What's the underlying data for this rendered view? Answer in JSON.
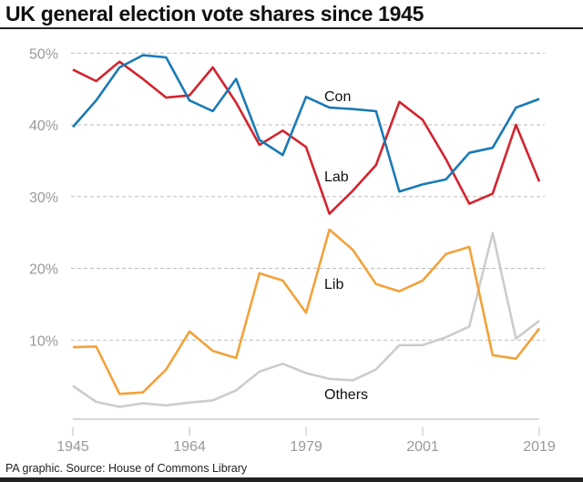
{
  "title": "UK general election vote shares since 1945",
  "source": "PA graphic. Source: House of Commons Library",
  "chart_data": {
    "type": "line",
    "title": "UK general election vote shares since 1945",
    "x": [
      "1945",
      "1950",
      "1951",
      "1955",
      "1959",
      "1964",
      "1966",
      "1970",
      "Feb 1974",
      "Oct 1974",
      "1979",
      "1983",
      "1987",
      "1992",
      "1997",
      "2001",
      "2005",
      "2010",
      "2015",
      "2017",
      "2019"
    ],
    "x_tick_labels": [
      "1945",
      "1964",
      "1979",
      "2001",
      "2019"
    ],
    "y_tick_labels": [
      "10%",
      "20%",
      "30%",
      "40%",
      "50%"
    ],
    "ylim": [
      0,
      50
    ],
    "grid": "horizontal dashed",
    "series": [
      {
        "name": "Con",
        "color": "#1a7ab5",
        "values": [
          39.7,
          43.4,
          48.0,
          49.7,
          49.4,
          43.4,
          41.9,
          46.4,
          37.9,
          35.8,
          43.9,
          42.4,
          42.2,
          41.9,
          30.7,
          31.7,
          32.4,
          36.1,
          36.8,
          42.4,
          43.6
        ]
      },
      {
        "name": "Lab",
        "color": "#d3242e",
        "values": [
          47.7,
          46.1,
          48.8,
          46.4,
          43.8,
          44.1,
          48.0,
          43.1,
          37.2,
          39.2,
          36.9,
          27.6,
          30.8,
          34.4,
          43.2,
          40.7,
          35.2,
          29.0,
          30.4,
          40.0,
          32.1
        ]
      },
      {
        "name": "Lib",
        "color": "#f2a23a",
        "values": [
          9.0,
          9.1,
          2.5,
          2.7,
          5.9,
          11.2,
          8.5,
          7.5,
          19.3,
          18.3,
          13.8,
          25.4,
          22.6,
          17.8,
          16.8,
          18.3,
          22.0,
          23.0,
          7.9,
          7.4,
          11.6
        ]
      },
      {
        "name": "Others",
        "color": "#cccccc",
        "values": [
          3.6,
          1.4,
          0.7,
          1.2,
          0.9,
          1.3,
          1.6,
          3.0,
          5.6,
          6.7,
          5.4,
          4.6,
          4.4,
          5.9,
          9.3,
          9.3,
          10.4,
          11.9,
          24.9,
          10.2,
          12.7
        ]
      }
    ]
  }
}
